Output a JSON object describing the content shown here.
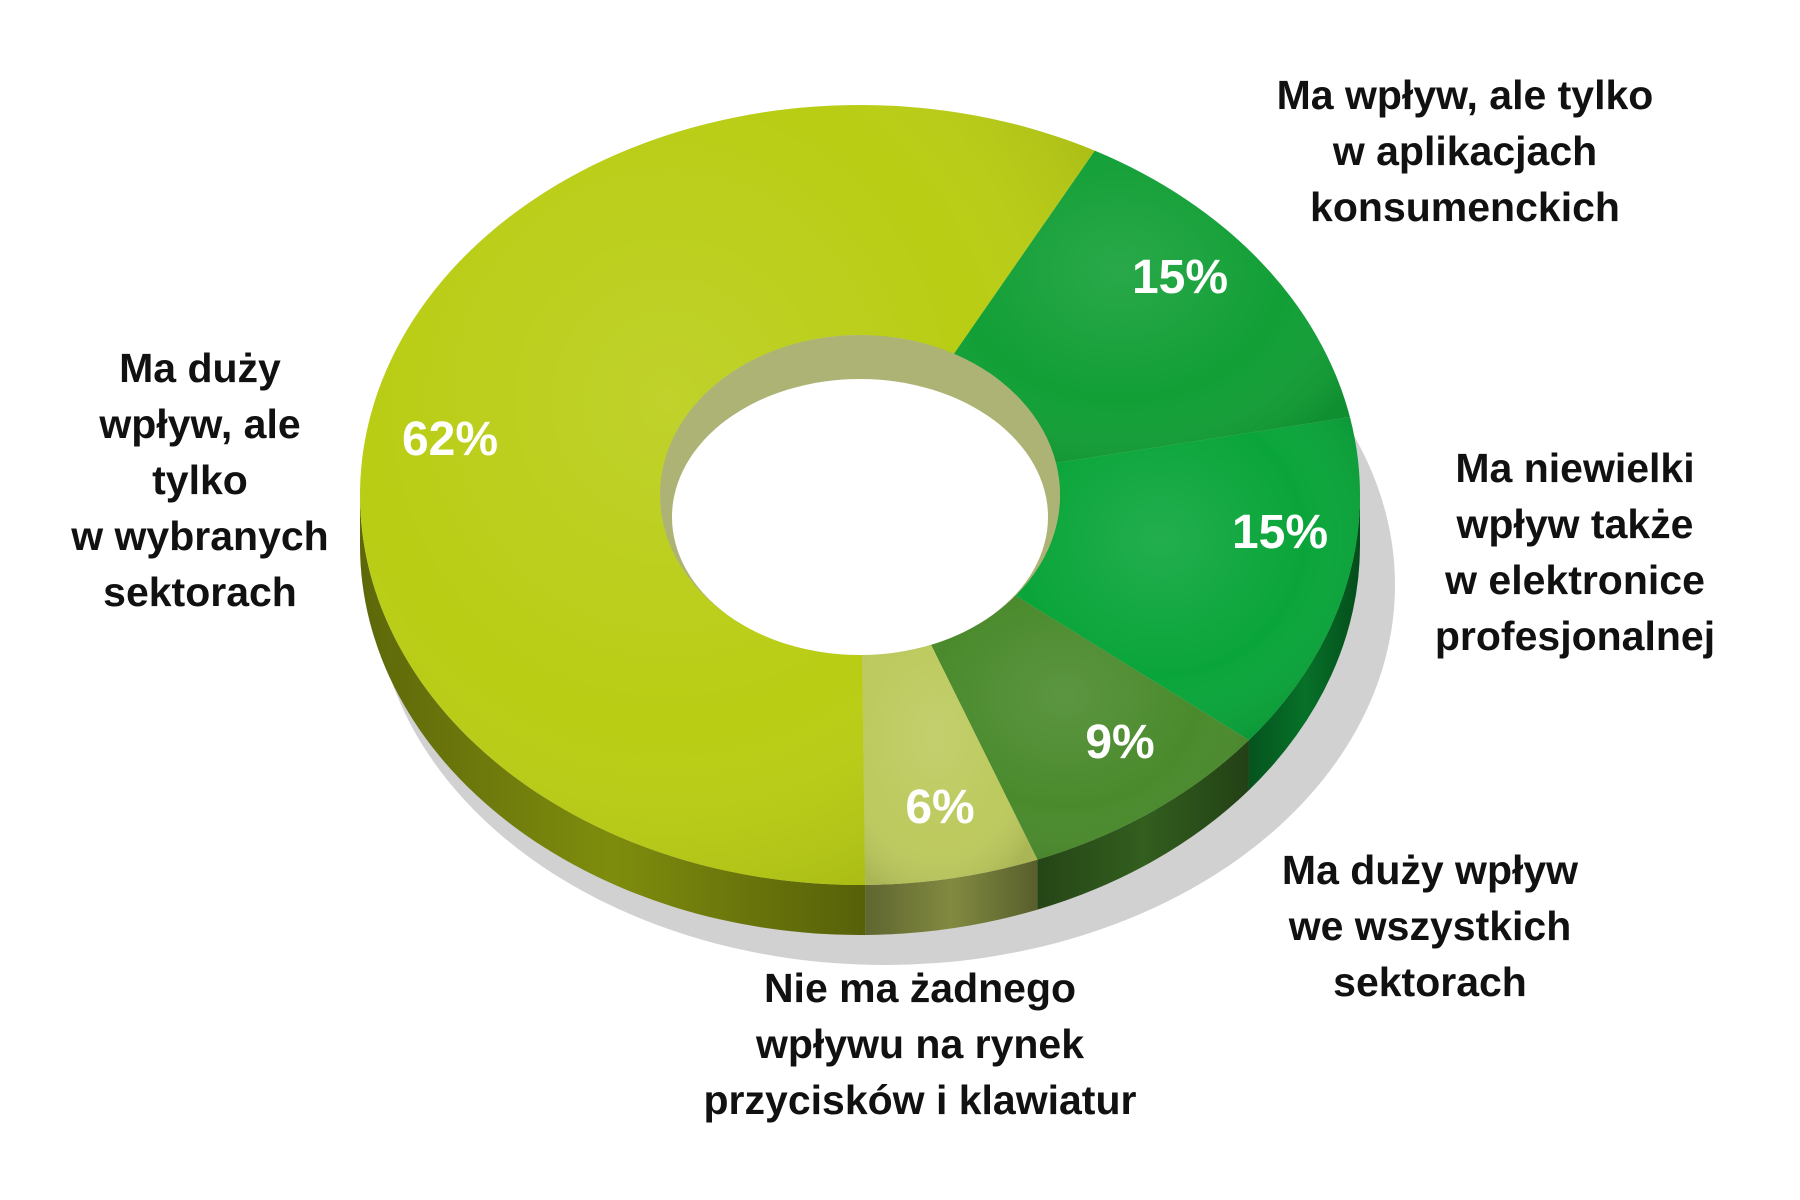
{
  "chart_data": {
    "type": "pie",
    "variant": "donut-3d",
    "title": "",
    "legend": "none",
    "slices": [
      {
        "label": "Ma wpływ, ale tylko\nw aplikacjach\nkonsumenckich",
        "value": 15,
        "value_label": "15%",
        "color": "#129f36"
      },
      {
        "label": "Ma niewielki\nwpływ także\nw elektronice\nprofesjonalnej",
        "value": 15,
        "value_label": "15%",
        "color": "#0aa53a"
      },
      {
        "label": "Ma duży wpływ\nwe wszystkich\nsektorach",
        "value": 9,
        "value_label": "9%",
        "color": "#4a8a2c"
      },
      {
        "label": "Nie ma żadnego\nwpływu na rynek\nprzycisków i klawiatur",
        "value": 6,
        "value_label": "6%",
        "color": "#bdca5e"
      },
      {
        "label": "Ma duży\nwpływ, ale\ntylko\nw wybranych\nsektorach",
        "value": 62,
        "value_label": "62%",
        "color": "#b9cd14"
      }
    ]
  }
}
